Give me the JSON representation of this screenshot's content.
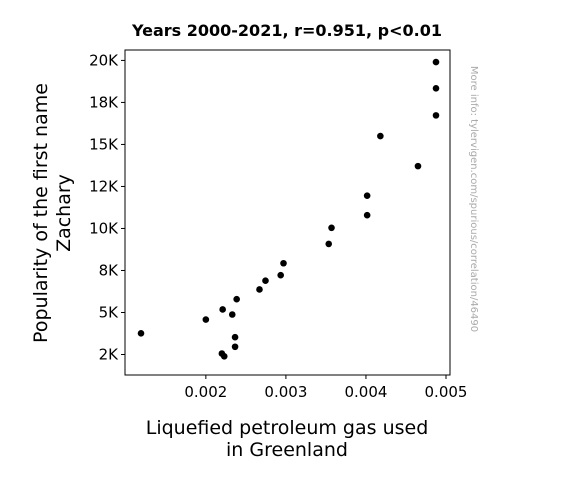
{
  "chart_data": {
    "type": "scatter",
    "title": "Years 2000-2021, r=0.951, p<0.01",
    "xlabel_lines": [
      "Liquefied petroleum gas used",
      "in Greenland"
    ],
    "ylabel_lines": [
      "Popularity of the first name",
      "Zachary"
    ],
    "xlim": [
      0.00099,
      0.00505
    ],
    "ylim": [
      1280,
      20620
    ],
    "x_ticks": [
      {
        "value": 0.002,
        "label": "0.002"
      },
      {
        "value": 0.003,
        "label": "0.003"
      },
      {
        "value": 0.004,
        "label": "0.004"
      },
      {
        "value": 0.005,
        "label": "0.005"
      }
    ],
    "y_ticks": [
      {
        "value": 2500,
        "label": "2K"
      },
      {
        "value": 5000,
        "label": "5K"
      },
      {
        "value": 7500,
        "label": "8K"
      },
      {
        "value": 10000,
        "label": "10K"
      },
      {
        "value": 12500,
        "label": "12K"
      },
      {
        "value": 15000,
        "label": "15K"
      },
      {
        "value": 17500,
        "label": "18K"
      },
      {
        "value": 20000,
        "label": "20K"
      }
    ],
    "points": [
      {
        "x": 0.004875,
        "y": 19900
      },
      {
        "x": 0.004875,
        "y": 18340
      },
      {
        "x": 0.004875,
        "y": 16730
      },
      {
        "x": 0.00418,
        "y": 15500
      },
      {
        "x": 0.00465,
        "y": 13710
      },
      {
        "x": 0.004015,
        "y": 11950
      },
      {
        "x": 0.004015,
        "y": 10790
      },
      {
        "x": 0.00357,
        "y": 10040
      },
      {
        "x": 0.003535,
        "y": 9080
      },
      {
        "x": 0.00297,
        "y": 7930
      },
      {
        "x": 0.002935,
        "y": 7220
      },
      {
        "x": 0.002745,
        "y": 6890
      },
      {
        "x": 0.00267,
        "y": 6370
      },
      {
        "x": 0.002385,
        "y": 5790
      },
      {
        "x": 0.00221,
        "y": 5180
      },
      {
        "x": 0.00233,
        "y": 4880
      },
      {
        "x": 0.002,
        "y": 4580
      },
      {
        "x": 0.00119,
        "y": 3760
      },
      {
        "x": 0.002365,
        "y": 3530
      },
      {
        "x": 0.002365,
        "y": 2960
      },
      {
        "x": 0.0022,
        "y": 2560
      },
      {
        "x": 0.00223,
        "y": 2390
      }
    ],
    "marker_color": "#000000",
    "grid": false
  },
  "watermark": "More info: tylervigen.com/spurious/correlation/46490"
}
